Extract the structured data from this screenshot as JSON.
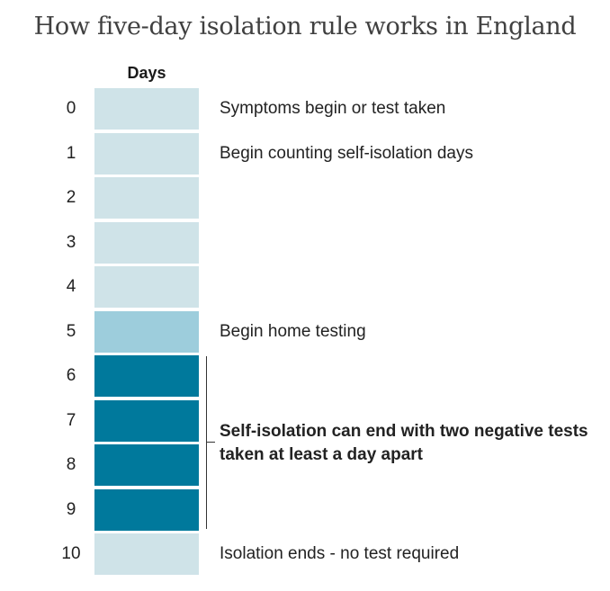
{
  "title": "How five-day isolation rule works in England",
  "days_header": "Days",
  "colors": {
    "light": "#cfe3e8",
    "mid": "#9dcddc",
    "dark": "#00799c"
  },
  "days": [
    {
      "day": "0",
      "label": "Symptoms begin or test taken",
      "shade": "light"
    },
    {
      "day": "1",
      "label": "Begin counting self-isolation days",
      "shade": "light"
    },
    {
      "day": "2",
      "label": "",
      "shade": "light"
    },
    {
      "day": "3",
      "label": "",
      "shade": "light"
    },
    {
      "day": "4",
      "label": "",
      "shade": "light"
    },
    {
      "day": "5",
      "label": "Begin home testing",
      "shade": "mid"
    },
    {
      "day": "6",
      "label": "",
      "shade": "dark"
    },
    {
      "day": "7",
      "label": "",
      "shade": "dark"
    },
    {
      "day": "8",
      "label": "",
      "shade": "dark"
    },
    {
      "day": "9",
      "label": "",
      "shade": "dark"
    },
    {
      "day": "10",
      "label": "Isolation ends - no test required",
      "shade": "light"
    }
  ],
  "bracket_note": "Self-isolation can end with two negative tests taken at least a day apart"
}
